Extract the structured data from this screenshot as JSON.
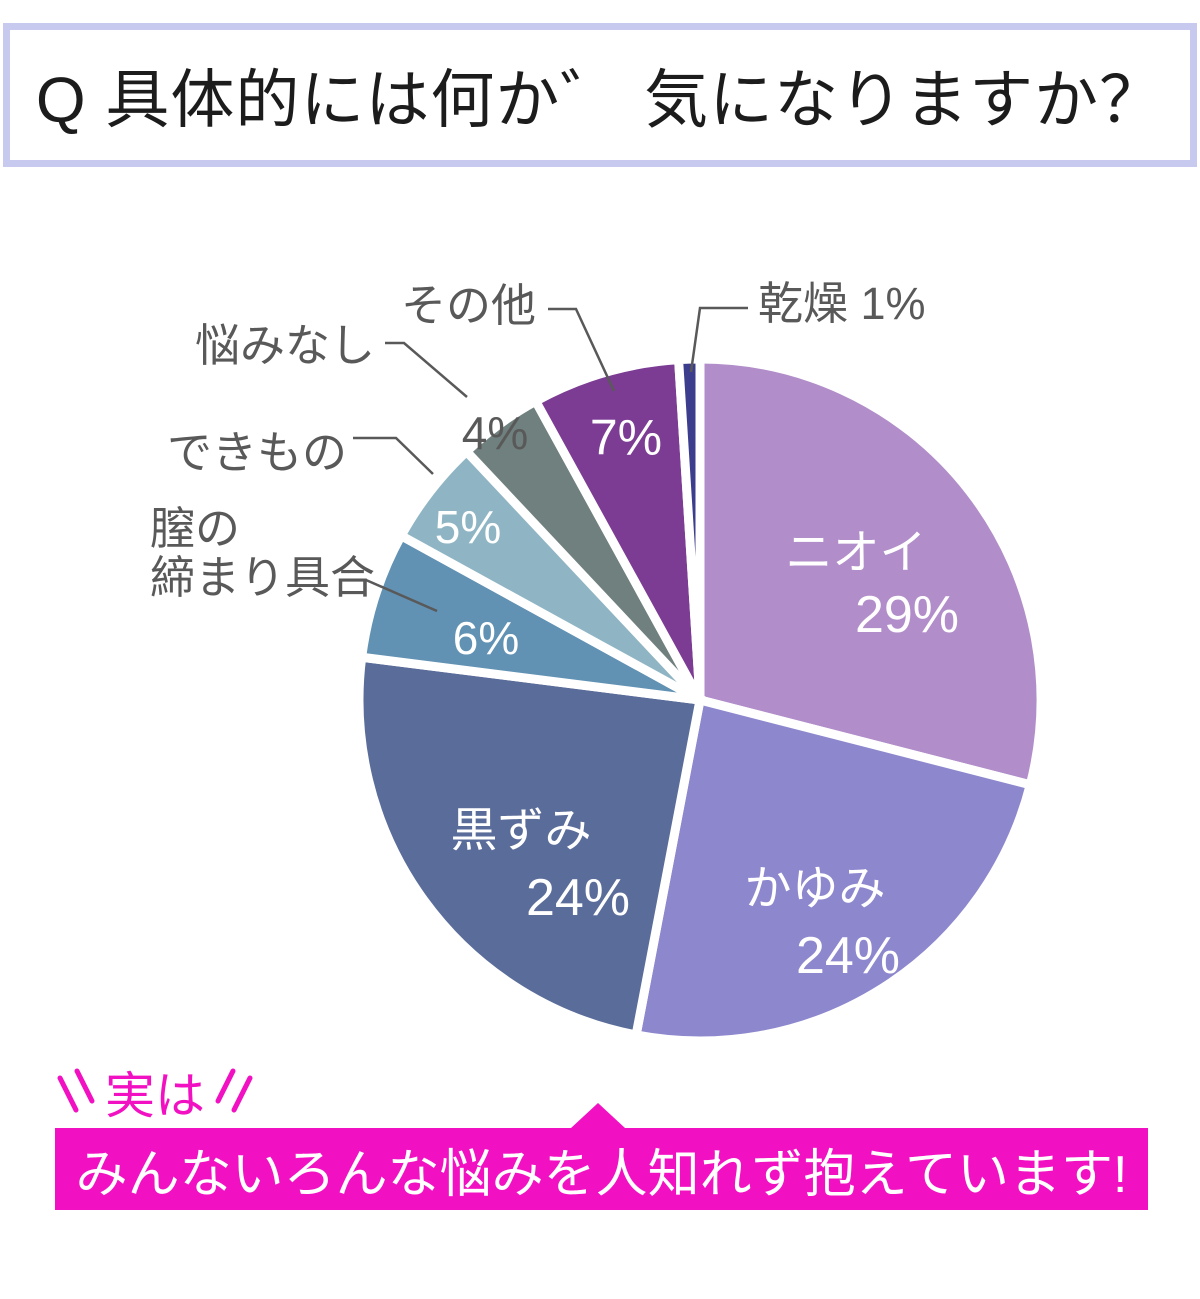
{
  "header": {
    "question": "Q 具体的には何か゛ 気になりますか？"
  },
  "chart_data": {
    "type": "pie",
    "title": "Q 具体的には何か゛ 気になりますか？",
    "unit": "%",
    "order": "clockwise-from-top",
    "legend": "none",
    "slices": [
      {
        "label": "ニオイ",
        "value": 29,
        "color": "#b18dc9"
      },
      {
        "label": "かゆみ",
        "value": 24,
        "color": "#8d87ce"
      },
      {
        "label": "黒ずみ",
        "value": 24,
        "color": "#5a6c99"
      },
      {
        "label": "膣の締まり具合",
        "value": 6,
        "color": "#6191b3"
      },
      {
        "label": "できもの",
        "value": 5,
        "color": "#8fb5c5"
      },
      {
        "label": "悩みなし",
        "value": 4,
        "color": "#6f807e"
      },
      {
        "label": "その他",
        "value": 7,
        "color": "#7c3c93"
      },
      {
        "label": "乾燥",
        "value": 1,
        "color": "#3c3d8c"
      }
    ],
    "label_text_colors": {
      "inside": "#ffffff",
      "outside": "#595959"
    }
  },
  "callout": {
    "lead": "実は",
    "banner": "みんないろんな悩みを人知れず抱えています!"
  },
  "colors": {
    "accent_magenta": "#f211c2",
    "header_border": "#c7c9ee",
    "header_text": "#1c1c1c",
    "label_gray": "#595959",
    "slice_gap_white": "#ffffff",
    "background": "#ffffff"
  }
}
